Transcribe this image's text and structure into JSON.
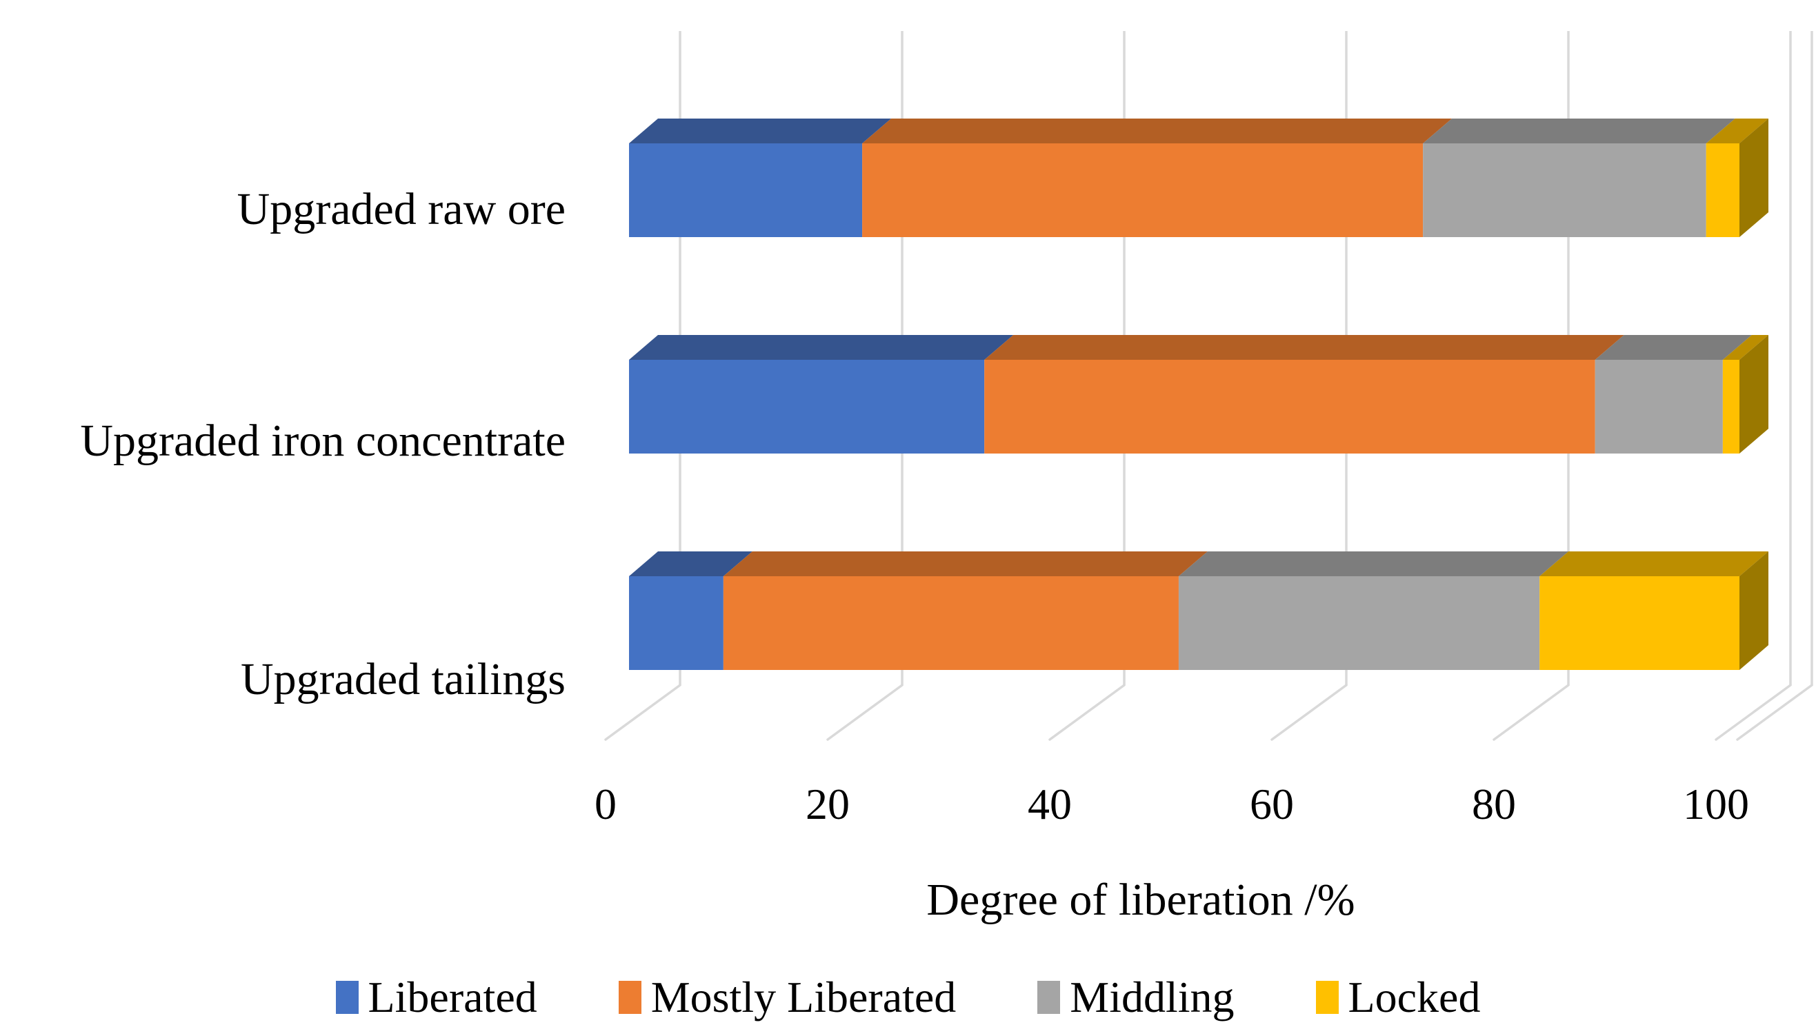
{
  "chart_data": {
    "type": "bar",
    "orientation": "horizontal",
    "stacked": true,
    "effect": "3d",
    "title": "",
    "xlabel": "Degree of liberation /%",
    "ylabel": "",
    "categories": [
      "Upgraded raw ore",
      "Upgraded iron concentrate",
      "Upgraded tailings"
    ],
    "series": [
      {
        "name": "Liberated",
        "color": "#4472C4",
        "top_color": "#35548E",
        "side_color": "#2A4370",
        "values": [
          21,
          32,
          8.5
        ]
      },
      {
        "name": "Mostly Liberated",
        "color": "#ED7D31",
        "top_color": "#B35F24",
        "side_color": "#8F4C1D",
        "values": [
          50.5,
          55,
          41
        ]
      },
      {
        "name": "Middling",
        "color": "#A5A5A5",
        "top_color": "#7D7D7D",
        "side_color": "#636363",
        "values": [
          25.5,
          11.5,
          32.5
        ]
      },
      {
        "name": "Locked",
        "color": "#FFC000",
        "top_color": "#BC8E00",
        "side_color": "#9A7800",
        "values": [
          3,
          1.5,
          18
        ]
      }
    ],
    "x_ticks": [
      "0",
      "20",
      "40",
      "60",
      "80",
      "100"
    ],
    "xlim": [
      0,
      104
    ],
    "grid": true,
    "gridline_color": "#D9D9D9",
    "legend_position": "bottom",
    "background": "#FFFFFF",
    "text_color": "#000000"
  }
}
